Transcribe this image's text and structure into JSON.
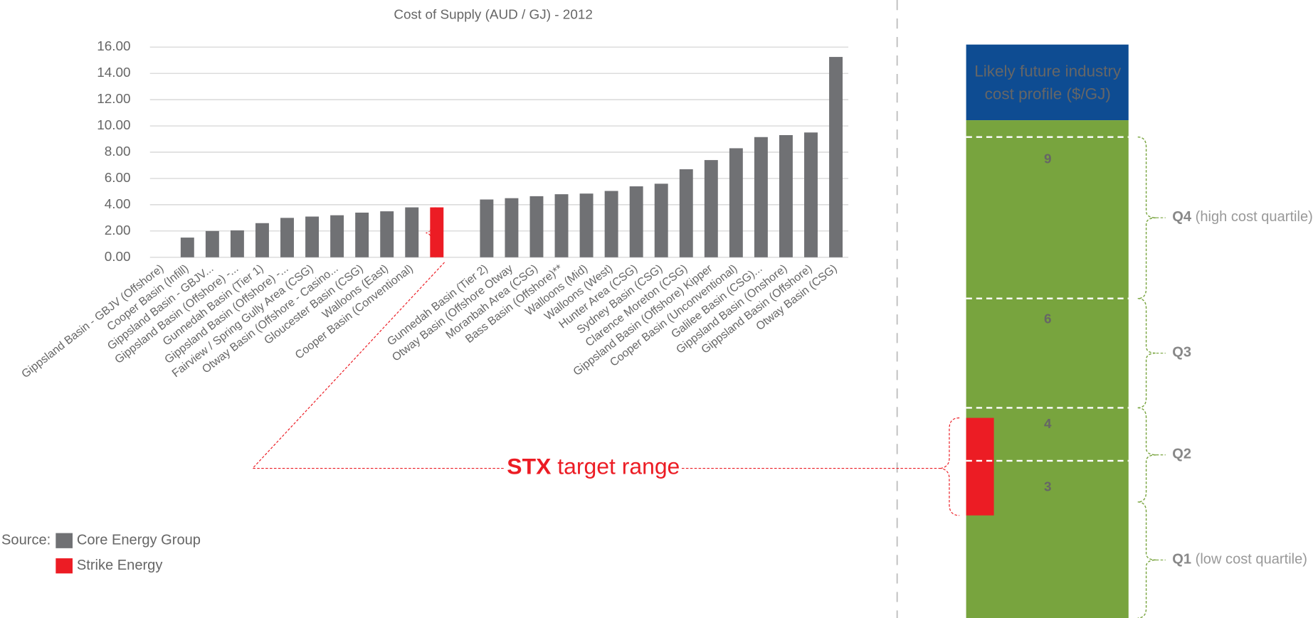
{
  "chart_data": {
    "type": "bar",
    "title": "Cost of Supply (AUD / GJ) - 2012",
    "categories": [
      "Gippsland Basin - GBJV (Offshore)",
      "Cooper Basin (Infill)",
      "Gippsland Basin - GBJV...",
      "Gippsland Basin (Offshore) -...",
      "Gunnedah Basin (Tier 1)",
      "Gippsland Basin (Offshore) -...",
      "Fairview / Spring Gully Area (CSG)",
      "Otway Basin (Offshore - Casino...",
      "Gloucester Basin (CSG)",
      "Walloons (East)",
      "Cooper Basin (Conventional)",
      null,
      null,
      "Gunnedah Basin (Tier 2)",
      "Otway Basin (Offshore  Otway",
      "Moranbah Area (CSG)",
      "Bass Basin (Offshore)**",
      "Walloons (Mid)",
      "Walloons (West)",
      "Hunter Area (CSG)",
      "Sydney Basin (CSG)",
      "Clarence Moreton (CSG)",
      "Gippsland Basin (Offshore)  Kipper",
      "Cooper Basin (Unconventional)",
      "Galilee Basin (CSG)...",
      "Gippsland Basin (Onshore)",
      "Gippsland Basin (Offshore)",
      "Otway Basin (CSG)"
    ],
    "series": [
      {
        "name": "Core Energy Group",
        "color": "#707174",
        "values": [
          0,
          1.5,
          2.0,
          2.05,
          2.6,
          3.0,
          3.1,
          3.2,
          3.4,
          3.5,
          3.8,
          null,
          null,
          4.4,
          4.5,
          4.65,
          4.8,
          4.85,
          5.05,
          5.4,
          5.6,
          6.7,
          7.4,
          8.3,
          9.15,
          9.3,
          9.5,
          15.25
        ]
      },
      {
        "name": "Strike Energy",
        "color": "#ec1c24",
        "values": [
          null,
          null,
          null,
          null,
          null,
          null,
          null,
          null,
          null,
          null,
          null,
          3.8,
          null,
          null,
          null,
          null,
          null,
          null,
          null,
          null,
          null,
          null,
          null,
          null,
          null,
          null,
          null,
          null
        ]
      }
    ],
    "ylim": [
      0,
      16
    ],
    "yticks": [
      {
        "value": 0,
        "label": "0.00"
      },
      {
        "value": 2,
        "label": "2.00"
      },
      {
        "value": 4,
        "label": "4.00"
      },
      {
        "value": 6,
        "label": "6.00"
      },
      {
        "value": 8,
        "label": "8.00"
      },
      {
        "value": 10,
        "label": "10.00"
      },
      {
        "value": 12,
        "label": "12.00"
      },
      {
        "value": 14,
        "label": "14.00"
      },
      {
        "value": 16,
        "label": "16.00"
      }
    ],
    "grid": true,
    "legend_title": "Source:",
    "annotation": {
      "emphasis": "STX",
      "text": "target range"
    }
  },
  "profile": {
    "title_lines": [
      "Likely future industry",
      "cost profile ($/GJ)"
    ],
    "levels": [
      9,
      6,
      4,
      3
    ],
    "quartiles": [
      {
        "name": "Q4",
        "desc": "(high cost quartile)"
      },
      {
        "name": "Q3",
        "desc": ""
      },
      {
        "name": "Q2",
        "desc": ""
      },
      {
        "name": "Q1",
        "desc": "(low cost quartile)"
      }
    ]
  }
}
